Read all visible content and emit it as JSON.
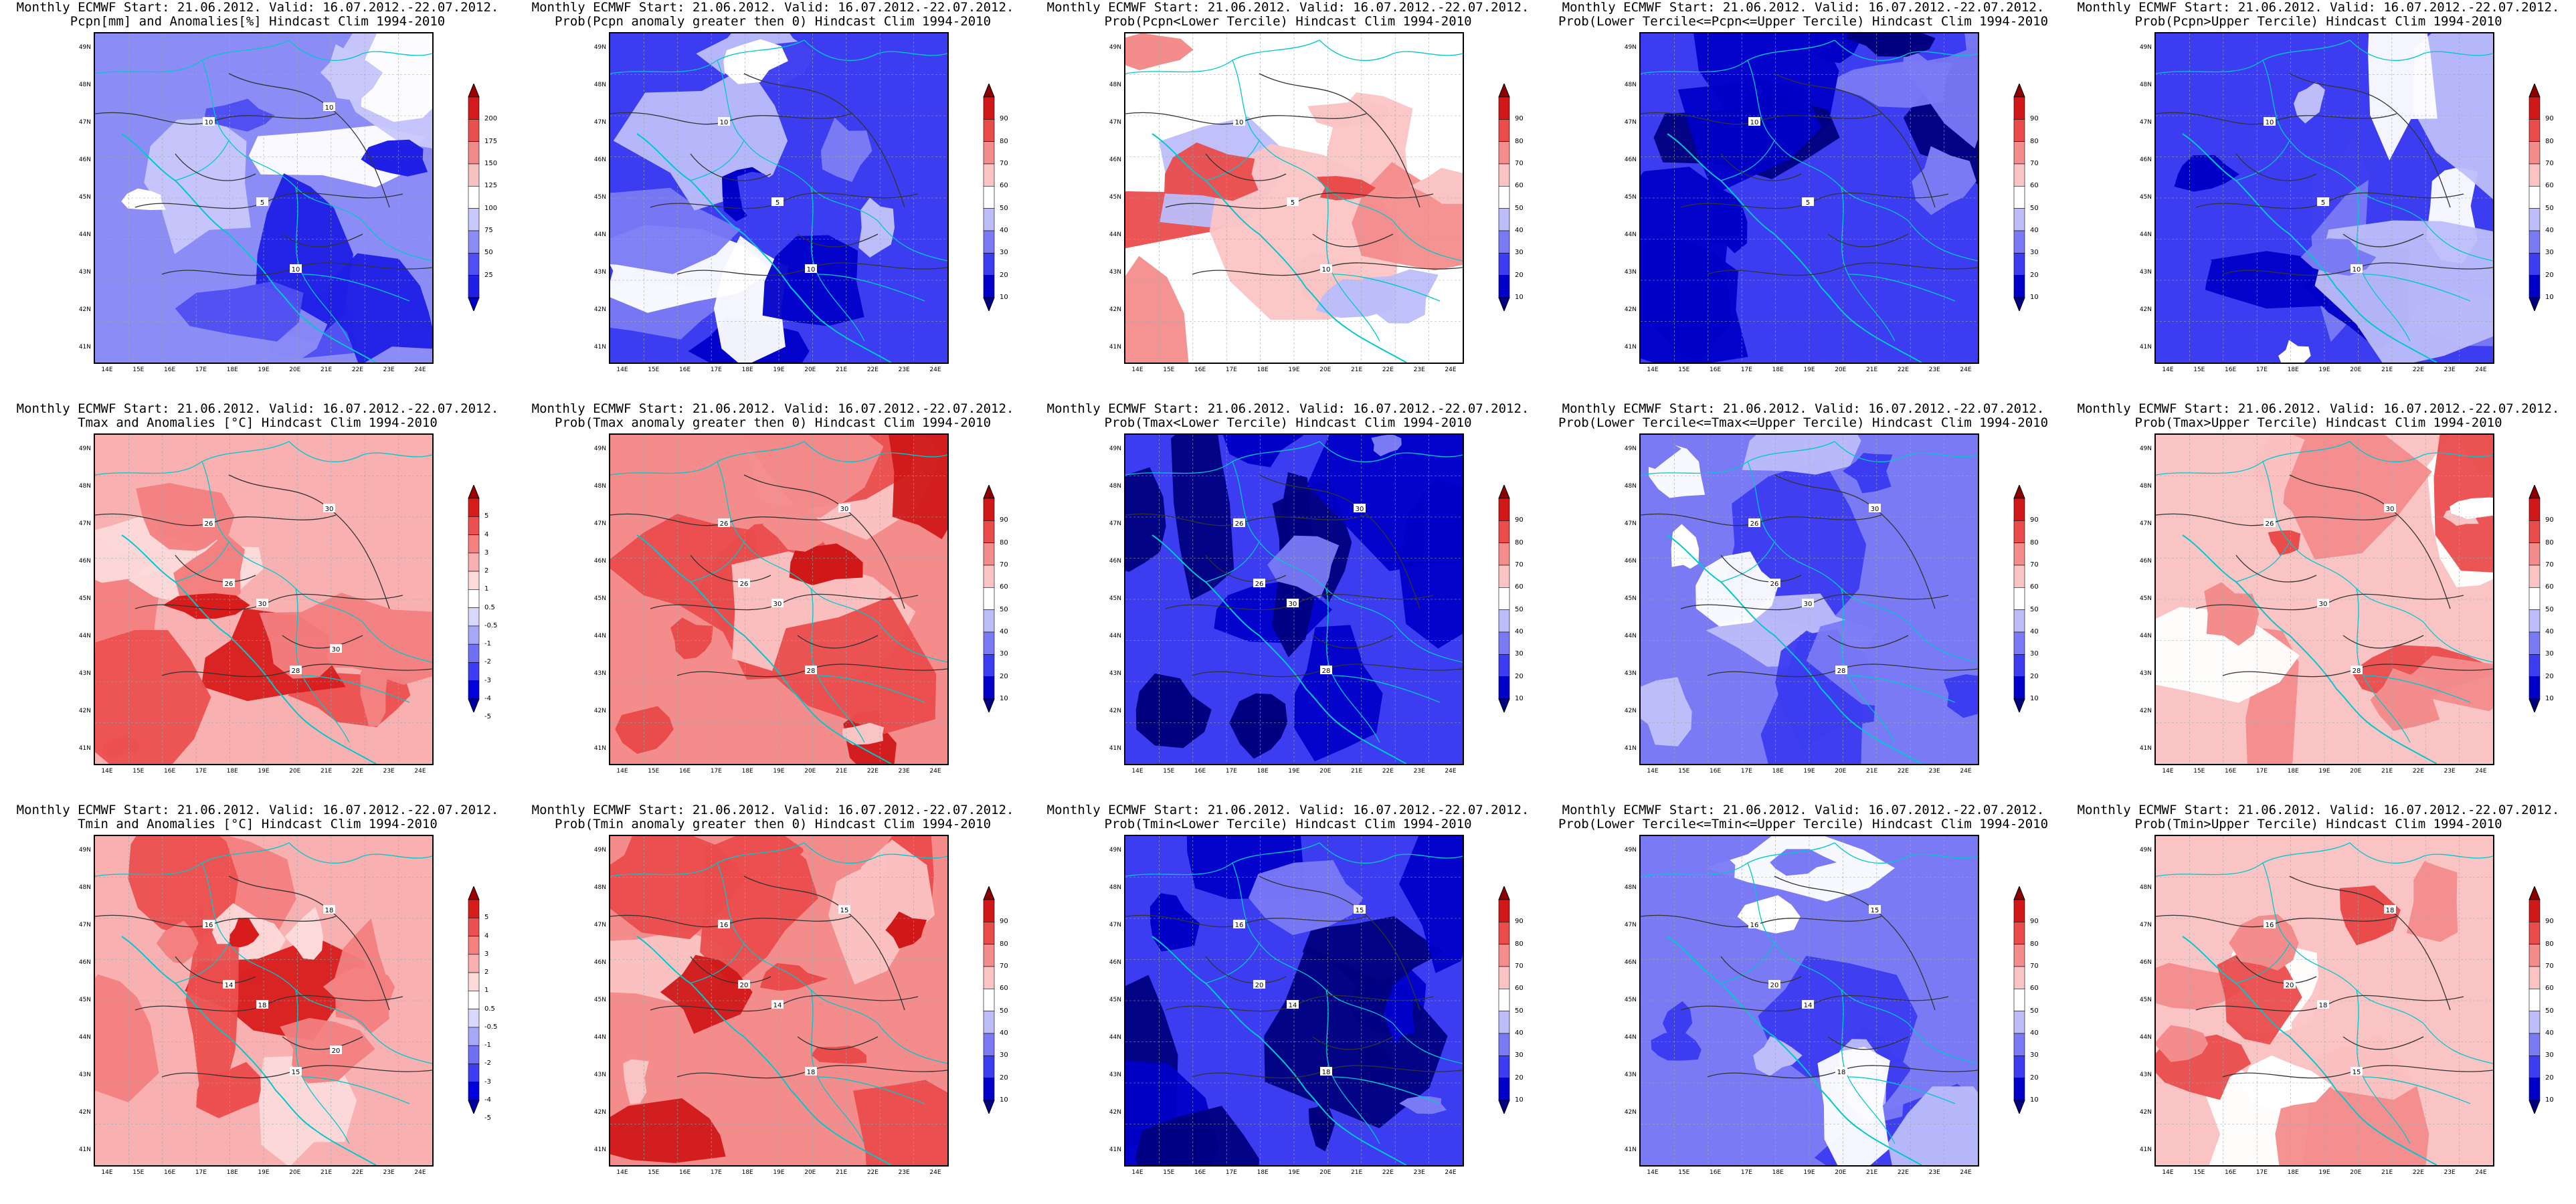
{
  "figure": {
    "colors": {
      "accent_border": "#00c8cc",
      "contour": "#333333",
      "precip_scale": [
        "#0000c8",
        "#1f1fe6",
        "#4f4ff2",
        "#8c8cf7",
        "#c8c8fb",
        "#ffffff",
        "#f7c2c2",
        "#f08a8a",
        "#e85050",
        "#d41a1a",
        "#a00000"
      ],
      "prob_scale": [
        "#000080",
        "#0000c8",
        "#3c3cf0",
        "#7a7af5",
        "#bdbdfa",
        "#ffffff",
        "#fbc4c4",
        "#f48c8c",
        "#ea4c4c",
        "#d01818",
        "#8c0000"
      ],
      "temp_scale": [
        "#0000a0",
        "#0000dc",
        "#3c3cf0",
        "#7070f4",
        "#a8a8f8",
        "#d8d8fc",
        "#ffffff",
        "#fcdada",
        "#f9b0b0",
        "#f48080",
        "#ec5050",
        "#d81c1c",
        "#a00000"
      ]
    },
    "lat_labels": [
      "49N",
      "48N",
      "47N",
      "46N",
      "45N",
      "44N",
      "43N",
      "42N",
      "41N"
    ],
    "lon_labels": [
      "14E",
      "15E",
      "16E",
      "17E",
      "18E",
      "19E",
      "20E",
      "21E",
      "22E",
      "23E",
      "24E"
    ],
    "legends": {
      "precip": [
        "200",
        "175",
        "150",
        "125",
        "100",
        "75",
        "50",
        "25"
      ],
      "prob": [
        "90",
        "80",
        "70",
        "60",
        "50",
        "40",
        "30",
        "20",
        "10"
      ],
      "temp": [
        "5",
        "4",
        "3",
        "2",
        "1",
        "0.5",
        "-0.5",
        "-1",
        "-2",
        "-3",
        "-4",
        "-5"
      ]
    },
    "panels": [
      {
        "row": 0,
        "col": 0,
        "line1": "Monthly ECMWF Start: 21.06.2012. Valid: 16.07.2012.-22.07.2012.",
        "line2": "Pcpn[mm] and Anomalies[%] Hindcast Clim 1994-2010",
        "theme": "precip-blue",
        "legend": "precip",
        "contours": [
          "10",
          "5",
          "10",
          "10"
        ]
      },
      {
        "row": 0,
        "col": 1,
        "line1": "Monthly ECMWF Start: 21.06.2012. Valid: 16.07.2012.-22.07.2012.",
        "line2": "Prob(Pcpn anomaly greater then 0) Hindcast Clim 1994-2010",
        "theme": "prob-blue",
        "legend": "prob",
        "contours": [
          "10",
          "5",
          "10"
        ]
      },
      {
        "row": 0,
        "col": 2,
        "line1": "Monthly ECMWF Start: 21.06.2012. Valid: 16.07.2012.-22.07.2012.",
        "line2": "Prob(Pcpn<Lower Tercile) Hindcast Clim 1994-2010",
        "theme": "prob-mixed",
        "legend": "prob",
        "contours": [
          "10",
          "5",
          "10"
        ]
      },
      {
        "row": 0,
        "col": 3,
        "line1": "Monthly ECMWF Start: 21.06.2012. Valid: 16.07.2012.-22.07.2012.",
        "line2": "Prob(Lower Tercile<=Pcpn<=Upper Tercile) Hindcast Clim 1994-2010",
        "theme": "prob-deepblue",
        "legend": "prob",
        "contours": [
          "10",
          "5"
        ]
      },
      {
        "row": 0,
        "col": 4,
        "line1": "Monthly ECMWF Start: 21.06.2012. Valid: 16.07.2012.-22.07.2012.",
        "line2": "Prob(Pcpn>Upper Tercile) Hindcast Clim 1994-2010",
        "theme": "prob-blue",
        "legend": "prob",
        "contours": [
          "10",
          "5",
          "10"
        ]
      },
      {
        "row": 1,
        "col": 0,
        "line1": "Monthly ECMWF Start: 21.06.2012. Valid: 16.07.2012.-22.07.2012.",
        "line2": "Tmax and Anomalies [°C] Hindcast Clim 1994-2010",
        "theme": "temp-red",
        "legend": "temp",
        "contours": [
          "26",
          "30",
          "28",
          "30",
          "26",
          "30"
        ]
      },
      {
        "row": 1,
        "col": 1,
        "line1": "Monthly ECMWF Start: 21.06.2012. Valid: 16.07.2012.-22.07.2012.",
        "line2": "Prob(Tmax anomaly greater then 0) Hindcast Clim 1994-2010",
        "theme": "prob-red",
        "legend": "prob",
        "contours": [
          "26",
          "30",
          "28",
          "30",
          "26"
        ]
      },
      {
        "row": 1,
        "col": 2,
        "line1": "Monthly ECMWF Start: 21.06.2012. Valid: 16.07.2012.-22.07.2012.",
        "line2": "Prob(Tmax<Lower Tercile) Hindcast Clim 1994-2010",
        "theme": "prob-navy",
        "legend": "prob",
        "contours": [
          "26",
          "30",
          "28",
          "30",
          "26"
        ]
      },
      {
        "row": 1,
        "col": 3,
        "line1": "Monthly ECMWF Start: 21.06.2012. Valid: 16.07.2012.-22.07.2012.",
        "line2": "Prob(Lower Tercile<=Tmax<=Upper Tercile) Hindcast Clim 1994-2010",
        "theme": "prob-lightblue",
        "legend": "prob",
        "contours": [
          "26",
          "30",
          "28",
          "30",
          "26"
        ]
      },
      {
        "row": 1,
        "col": 4,
        "line1": "Monthly ECMWF Start: 21.06.2012. Valid: 16.07.2012.-22.07.2012.",
        "line2": "Prob(Tmax>Upper Tercile) Hindcast Clim 1994-2010",
        "theme": "prob-pink",
        "legend": "prob",
        "contours": [
          "26",
          "30",
          "28",
          "30"
        ]
      },
      {
        "row": 2,
        "col": 0,
        "line1": "Monthly ECMWF Start: 21.06.2012. Valid: 16.07.2012.-22.07.2012.",
        "line2": "Tmin and Anomalies [°C] Hindcast Clim 1994-2010",
        "theme": "temp-red",
        "legend": "temp",
        "contours": [
          "16",
          "18",
          "15",
          "18",
          "14",
          "20"
        ]
      },
      {
        "row": 2,
        "col": 1,
        "line1": "Monthly ECMWF Start: 21.06.2012. Valid: 16.07.2012.-22.07.2012.",
        "line2": "Prob(Tmin anomaly greater then 0) Hindcast Clim 1994-2010",
        "theme": "prob-red",
        "legend": "prob",
        "contours": [
          "16",
          "14",
          "18",
          "15",
          "20"
        ]
      },
      {
        "row": 2,
        "col": 2,
        "line1": "Monthly ECMWF Start: 21.06.2012. Valid: 16.07.2012.-22.07.2012.",
        "line2": "Prob(Tmin<Lower Tercile) Hindcast Clim 1994-2010",
        "theme": "prob-navy",
        "legend": "prob",
        "contours": [
          "16",
          "14",
          "18",
          "15",
          "20"
        ]
      },
      {
        "row": 2,
        "col": 3,
        "line1": "Monthly ECMWF Start: 21.06.2012. Valid: 16.07.2012.-22.07.2012.",
        "line2": "Prob(Lower Tercile<=Tmin<=Upper Tercile) Hindcast Clim 1994-2010",
        "theme": "prob-lightblue",
        "legend": "prob",
        "contours": [
          "16",
          "14",
          "18",
          "15",
          "20"
        ]
      },
      {
        "row": 2,
        "col": 4,
        "line1": "Monthly ECMWF Start: 21.06.2012. Valid: 16.07.2012.-22.07.2012.",
        "line2": "Prob(Tmin>Upper Tercile) Hindcast Clim 1994-2010",
        "theme": "prob-pink",
        "legend": "prob",
        "contours": [
          "16",
          "18",
          "15",
          "18",
          "20"
        ]
      }
    ]
  }
}
